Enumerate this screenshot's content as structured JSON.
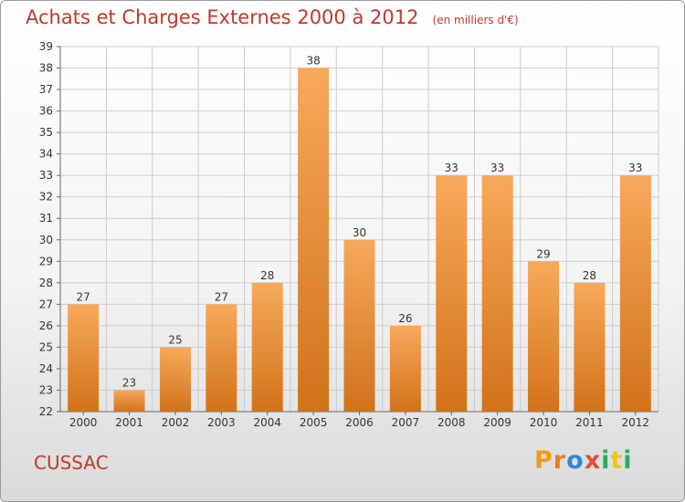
{
  "header": {
    "title": "Achats et Charges Externes 2000 à 2012",
    "unit": "(en milliers d'€)"
  },
  "footer": {
    "city": "CUSSAC",
    "brand": "Proxiti",
    "brand_letter_colors": [
      "#f39c12",
      "#e67e22",
      "#2e86de",
      "#e74c3c",
      "#27ae60",
      "#f1c40f",
      "#27ae60"
    ]
  },
  "chart_data": {
    "type": "bar",
    "categories": [
      "2000",
      "2001",
      "2002",
      "2003",
      "2004",
      "2005",
      "2006",
      "2007",
      "2008",
      "2009",
      "2010",
      "2011",
      "2012"
    ],
    "values": [
      27,
      23,
      25,
      27,
      28,
      38,
      30,
      26,
      33,
      33,
      29,
      28,
      33
    ],
    "data_labels": [
      "27",
      "23",
      "25",
      "27",
      "28",
      "38",
      "30",
      "26",
      "33",
      "33",
      "29",
      "28",
      "33"
    ],
    "y_ticks": [
      "22",
      "23",
      "24",
      "25",
      "26",
      "27",
      "28",
      "29",
      "30",
      "31",
      "32",
      "33",
      "34",
      "35",
      "36",
      "37",
      "38",
      "39"
    ],
    "ylim": [
      22,
      39
    ],
    "title": "Achats et Charges Externes 2000 à 2012",
    "xlabel": "",
    "ylabel": "",
    "grid": true,
    "colors": {
      "bar_top": "#f7a95a",
      "bar_bottom": "#d2721a",
      "grid": "#cccccc",
      "text": "#333333"
    }
  }
}
